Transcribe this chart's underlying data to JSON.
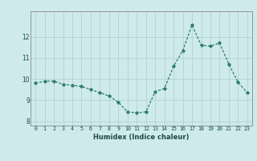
{
  "x": [
    0,
    1,
    2,
    3,
    4,
    5,
    6,
    7,
    8,
    9,
    10,
    11,
    12,
    13,
    14,
    15,
    16,
    17,
    18,
    19,
    20,
    21,
    22,
    23
  ],
  "y": [
    9.8,
    9.9,
    9.9,
    9.75,
    9.7,
    9.65,
    9.5,
    9.35,
    9.2,
    8.9,
    8.45,
    8.4,
    8.45,
    9.4,
    9.55,
    10.6,
    11.35,
    12.55,
    11.6,
    11.55,
    11.7,
    10.7,
    9.85,
    9.35
  ],
  "xlabel": "Humidex (Indice chaleur)",
  "ylim": [
    7.8,
    13.2
  ],
  "xlim": [
    -0.5,
    23.5
  ],
  "yticks": [
    8,
    9,
    10,
    11,
    12
  ],
  "xticks": [
    0,
    1,
    2,
    3,
    4,
    5,
    6,
    7,
    8,
    9,
    10,
    11,
    12,
    13,
    14,
    15,
    16,
    17,
    18,
    19,
    20,
    21,
    22,
    23
  ],
  "line_color": "#2d7d6d",
  "marker": "*",
  "bg_color": "#ceeaea",
  "grid_color": "#b8d4d4",
  "spine_color": "#888888"
}
